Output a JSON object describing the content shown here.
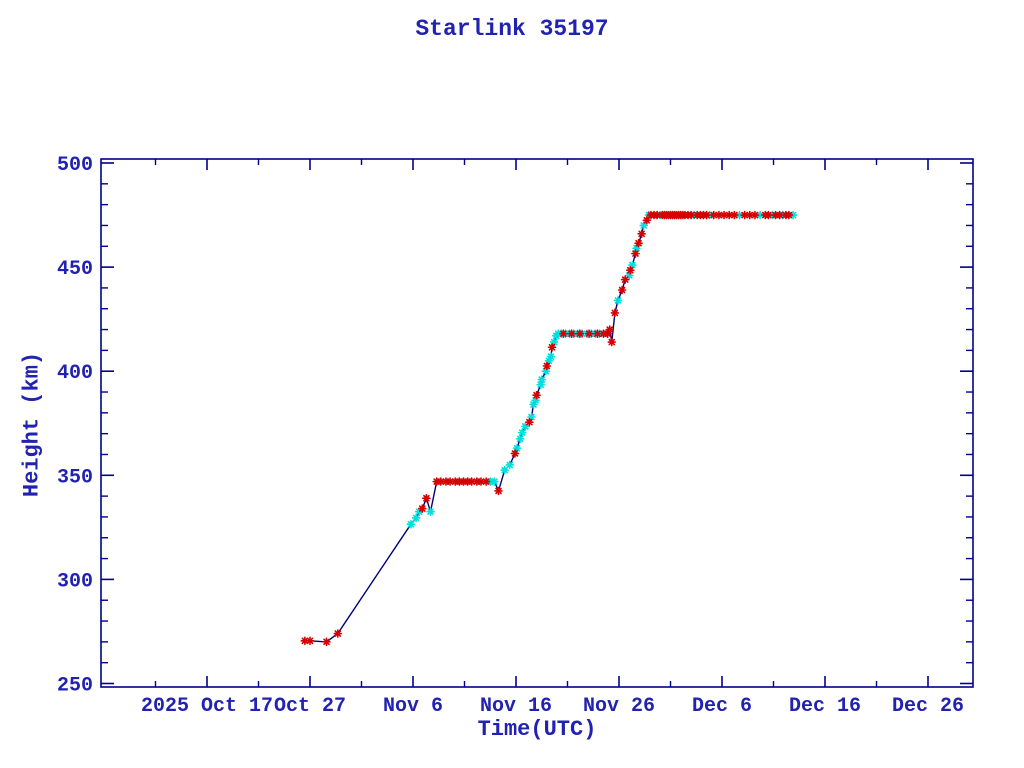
{
  "title": "Starlink 35197",
  "colors": {
    "axis": "#00008b",
    "text": "#2222b2",
    "line": "#000078",
    "marker_red": "#d60000",
    "marker_cyan": "#00dfdf",
    "background": "#ffffff"
  },
  "chart_data": {
    "type": "line",
    "title": "Starlink 35197",
    "xlabel": "Time(UTC)",
    "ylabel": "Height (km)",
    "x_unit": "days since 2025 Oct 17",
    "ylim": [
      250,
      500
    ],
    "xlim_days": [
      -10.2,
      74.4
    ],
    "grid": false,
    "legend": "none",
    "y_major_ticks": [
      250,
      300,
      350,
      400,
      450,
      500
    ],
    "y_minor_step": 10,
    "x_major_ticks": [
      {
        "day": 0,
        "label": "2025 Oct 17"
      },
      {
        "day": 10,
        "label": "Oct 27"
      },
      {
        "day": 20,
        "label": "Nov  6"
      },
      {
        "day": 30,
        "label": "Nov 16"
      },
      {
        "day": 40,
        "label": "Nov 26"
      },
      {
        "day": 50,
        "label": "Dec  6"
      },
      {
        "day": 60,
        "label": "Dec 16"
      },
      {
        "day": 70,
        "label": "Dec 26"
      }
    ],
    "x_minor_days": [
      -5,
      5,
      15,
      25,
      35,
      45,
      55,
      65
    ],
    "marker_style": "asterisk",
    "points": [
      [
        9.5,
        270.5,
        "red"
      ],
      [
        10.0,
        270.5,
        "red"
      ],
      [
        11.6,
        270.0,
        "red"
      ],
      [
        12.7,
        274.0,
        "red"
      ],
      [
        19.8,
        326.5,
        "cyan"
      ],
      [
        20.3,
        329.5,
        "cyan"
      ],
      [
        20.6,
        332.5,
        "cyan"
      ],
      [
        20.9,
        334.0,
        "red"
      ],
      [
        21.3,
        339.0,
        "red"
      ],
      [
        21.7,
        332.5,
        "cyan"
      ],
      [
        22.3,
        347.0,
        "red"
      ],
      [
        22.7,
        347.0,
        "red"
      ],
      [
        23.2,
        347.0,
        "red"
      ],
      [
        23.6,
        347.0,
        "red"
      ],
      [
        24.1,
        347.0,
        "red"
      ],
      [
        24.5,
        347.0,
        "red"
      ],
      [
        24.9,
        347.0,
        "red"
      ],
      [
        25.3,
        347.0,
        "red"
      ],
      [
        25.7,
        347.0,
        "red"
      ],
      [
        26.2,
        347.0,
        "red"
      ],
      [
        26.6,
        347.0,
        "red"
      ],
      [
        27.1,
        347.0,
        "red"
      ],
      [
        27.5,
        347.0,
        "cyan"
      ],
      [
        27.9,
        347.0,
        "cyan"
      ],
      [
        28.3,
        342.5,
        "red"
      ],
      [
        28.9,
        352.5,
        "cyan"
      ],
      [
        29.4,
        355.0,
        "cyan"
      ],
      [
        29.9,
        360.5,
        "red"
      ],
      [
        30.1,
        363.0,
        "cyan"
      ],
      [
        30.4,
        367.5,
        "cyan"
      ],
      [
        30.6,
        370.5,
        "cyan"
      ],
      [
        30.9,
        373.5,
        "cyan"
      ],
      [
        31.3,
        375.5,
        "red"
      ],
      [
        31.5,
        378.0,
        "cyan"
      ],
      [
        31.7,
        384.0,
        "cyan"
      ],
      [
        31.9,
        386.0,
        "cyan"
      ],
      [
        32.0,
        388.5,
        "red"
      ],
      [
        32.4,
        393.5,
        "cyan"
      ],
      [
        32.5,
        396.0,
        "cyan"
      ],
      [
        32.9,
        400.0,
        "cyan"
      ],
      [
        33.0,
        402.5,
        "red"
      ],
      [
        33.2,
        405.0,
        "cyan"
      ],
      [
        33.4,
        407.0,
        "cyan"
      ],
      [
        33.5,
        411.5,
        "red"
      ],
      [
        33.7,
        414.0,
        "cyan"
      ],
      [
        33.9,
        417.0,
        "cyan"
      ],
      [
        34.1,
        418.0,
        "cyan"
      ],
      [
        34.4,
        418.0,
        "cyan"
      ],
      [
        34.6,
        418.0,
        "red"
      ],
      [
        34.8,
        418.0,
        "cyan"
      ],
      [
        35.2,
        418.0,
        "cyan"
      ],
      [
        35.4,
        418.0,
        "red"
      ],
      [
        35.6,
        418.0,
        "cyan"
      ],
      [
        36.0,
        418.0,
        "cyan"
      ],
      [
        36.2,
        418.0,
        "red"
      ],
      [
        36.4,
        418.0,
        "cyan"
      ],
      [
        36.9,
        418.0,
        "cyan"
      ],
      [
        37.1,
        418.0,
        "red"
      ],
      [
        37.3,
        418.0,
        "cyan"
      ],
      [
        37.7,
        418.0,
        "cyan"
      ],
      [
        37.9,
        418.0,
        "red"
      ],
      [
        38.1,
        418.0,
        "cyan"
      ],
      [
        38.5,
        418.0,
        "red"
      ],
      [
        38.9,
        418.0,
        "red"
      ],
      [
        39.1,
        420.0,
        "red"
      ],
      [
        39.3,
        414.0,
        "red"
      ],
      [
        39.6,
        428.0,
        "red"
      ],
      [
        39.9,
        434.0,
        "cyan"
      ],
      [
        40.3,
        439.0,
        "red"
      ],
      [
        40.6,
        444.0,
        "red"
      ],
      [
        41.0,
        446.0,
        "cyan"
      ],
      [
        41.1,
        448.5,
        "red"
      ],
      [
        41.3,
        451.0,
        "cyan"
      ],
      [
        41.6,
        456.5,
        "red"
      ],
      [
        41.7,
        459.0,
        "cyan"
      ],
      [
        41.9,
        461.5,
        "red"
      ],
      [
        42.2,
        466.0,
        "red"
      ],
      [
        42.4,
        470.0,
        "cyan"
      ],
      [
        42.7,
        472.5,
        "red"
      ],
      [
        42.9,
        475.0,
        "cyan"
      ],
      [
        43.1,
        475.0,
        "red"
      ],
      [
        43.4,
        475.0,
        "red"
      ],
      [
        43.7,
        475.0,
        "red"
      ],
      [
        44.0,
        475.0,
        "cyan"
      ],
      [
        44.2,
        475.0,
        "red"
      ],
      [
        44.4,
        475.0,
        "red"
      ],
      [
        44.6,
        475.0,
        "red"
      ],
      [
        44.8,
        475.0,
        "red"
      ],
      [
        45.0,
        475.0,
        "red"
      ],
      [
        45.2,
        475.0,
        "red"
      ],
      [
        45.4,
        475.0,
        "red"
      ],
      [
        45.6,
        475.0,
        "red"
      ],
      [
        45.8,
        475.0,
        "red"
      ],
      [
        46.0,
        475.0,
        "red"
      ],
      [
        46.2,
        475.0,
        "red"
      ],
      [
        46.4,
        475.0,
        "red"
      ],
      [
        46.7,
        475.0,
        "red"
      ],
      [
        47.0,
        475.0,
        "red"
      ],
      [
        47.3,
        475.0,
        "cyan"
      ],
      [
        47.6,
        475.0,
        "red"
      ],
      [
        47.9,
        475.0,
        "red"
      ],
      [
        48.2,
        475.0,
        "red"
      ],
      [
        48.5,
        475.0,
        "red"
      ],
      [
        48.8,
        475.0,
        "cyan"
      ],
      [
        49.2,
        475.0,
        "red"
      ],
      [
        49.7,
        475.0,
        "red"
      ],
      [
        50.2,
        475.0,
        "red"
      ],
      [
        50.7,
        475.0,
        "red"
      ],
      [
        51.2,
        475.0,
        "red"
      ],
      [
        51.7,
        475.0,
        "cyan"
      ],
      [
        52.2,
        475.0,
        "red"
      ],
      [
        52.7,
        475.0,
        "red"
      ],
      [
        53.2,
        475.0,
        "red"
      ],
      [
        53.7,
        475.0,
        "cyan"
      ],
      [
        54.2,
        475.0,
        "red"
      ],
      [
        54.5,
        475.0,
        "red"
      ],
      [
        54.9,
        475.0,
        "cyan"
      ],
      [
        55.2,
        475.0,
        "red"
      ],
      [
        55.6,
        475.0,
        "red"
      ],
      [
        55.9,
        475.0,
        "cyan"
      ],
      [
        56.2,
        475.0,
        "red"
      ],
      [
        56.5,
        475.0,
        "red"
      ],
      [
        56.9,
        475.0,
        "cyan"
      ]
    ]
  }
}
